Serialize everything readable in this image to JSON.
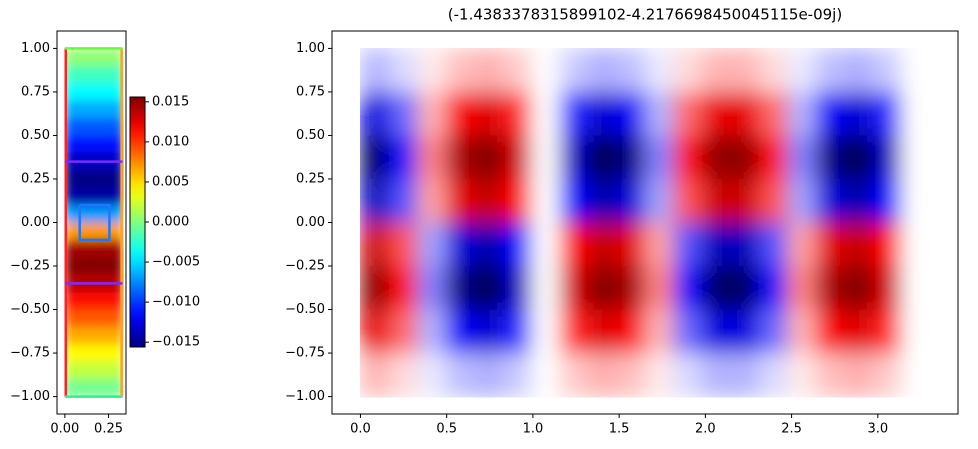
{
  "chart_data": [
    {
      "type": "heatmap",
      "cmap": "jet",
      "x_extent": [
        0,
        0.33
      ],
      "y_extent": [
        -1,
        1
      ],
      "values": [
        [
          0.0005
        ],
        [
          -0.002
        ],
        [
          -0.004
        ],
        [
          -0.0065
        ],
        [
          -0.009
        ],
        [
          -0.0115
        ],
        [
          -0.0138
        ],
        [
          -0.0155
        ],
        [
          -0.0145
        ],
        [
          -0.007
        ],
        [
          0.007
        ],
        [
          0.0145
        ],
        [
          0.0155
        ],
        [
          0.0138
        ],
        [
          0.0115
        ],
        [
          0.009
        ],
        [
          0.0065
        ],
        [
          0.004
        ],
        [
          0.002
        ],
        [
          -0.0005
        ]
      ],
      "xlim": [
        -0.045,
        0.35
      ],
      "ylim": [
        -1.1,
        1.1
      ],
      "xticks": [
        {
          "value": 0,
          "label": "0.00"
        },
        {
          "value": 0.25,
          "label": "0.25"
        }
      ],
      "yticks": [
        {
          "value": 1,
          "label": "1.00"
        },
        {
          "value": 0.75,
          "label": "0.75"
        },
        {
          "value": 0.5,
          "label": "0.50"
        },
        {
          "value": 0.25,
          "label": "0.25"
        },
        {
          "value": 0,
          "label": "0.00"
        },
        {
          "value": -0.25,
          "label": "−0.25"
        },
        {
          "value": -0.5,
          "label": "−0.50"
        },
        {
          "value": -0.75,
          "label": "−0.75"
        },
        {
          "value": -1,
          "label": "−1.00"
        }
      ],
      "colorbar": {
        "lim": [
          -0.0156,
          0.0156
        ],
        "ticks": [
          {
            "value": 0.015,
            "label": "0.015"
          },
          {
            "value": 0.01,
            "label": "0.010"
          },
          {
            "value": 0.005,
            "label": "0.005"
          },
          {
            "value": 0,
            "label": "0.000"
          },
          {
            "value": -0.005,
            "label": "−0.005"
          },
          {
            "value": -0.01,
            "label": "−0.010"
          },
          {
            "value": -0.015,
            "label": "−0.015"
          }
        ]
      },
      "shapes": [
        {
          "color": "#ff2020",
          "x": [
            0.005,
            0.005
          ],
          "y": [
            -1,
            1
          ]
        },
        {
          "color": "#ffa020",
          "x": [
            0.325,
            0.325
          ],
          "y": [
            -1,
            1
          ]
        },
        {
          "color": "#66ff33",
          "x": [
            0,
            0.33
          ],
          "y": [
            1,
            1
          ]
        },
        {
          "color": "#33ee88",
          "x": [
            0,
            0.33
          ],
          "y": [
            -1,
            -1
          ]
        },
        {
          "color": "#7a2cff",
          "x": [
            0,
            0.33
          ],
          "y": [
            0.35,
            0.35
          ]
        },
        {
          "color": "#7a2cff",
          "x": [
            0,
            0.33
          ],
          "y": [
            -0.35,
            -0.35
          ]
        },
        {
          "color": "#1f77ff",
          "x": [
            0.085,
            0.255,
            0.255,
            0.085,
            0.085
          ],
          "y": [
            0.1,
            0.1,
            -0.1,
            -0.1,
            0.1
          ]
        }
      ]
    },
    {
      "type": "heatmap",
      "cmap": "seismic",
      "title": "(-1.4383378315899102-4.2176698450045115e-09j)",
      "x_extent": [
        0,
        3.3
      ],
      "y_extent": [
        -1,
        1
      ],
      "values": [
        [
          -0.14,
          -0.07,
          0.04,
          0.12,
          0.15,
          0.1,
          0,
          -0.1,
          -0.15,
          -0.12,
          -0.04,
          0.07,
          0.14,
          0.14,
          0.07,
          -0.04,
          -0.12,
          -0.15,
          -0.1,
          0
        ],
        [
          -0.56,
          -0.28,
          0.14,
          0.49,
          0.59,
          0.4,
          0,
          -0.4,
          -0.59,
          -0.49,
          -0.14,
          0.28,
          0.56,
          0.56,
          0.28,
          -0.14,
          -0.49,
          -0.59,
          -0.4,
          0
        ],
        [
          -0.88,
          -0.44,
          0.23,
          0.78,
          0.94,
          0.63,
          0,
          -0.63,
          -0.94,
          -0.78,
          -0.23,
          0.44,
          0.88,
          0.88,
          0.44,
          -0.23,
          -0.78,
          -0.94,
          -0.63,
          0
        ],
        [
          -0.65,
          -0.32,
          0.17,
          0.57,
          0.69,
          0.46,
          0,
          -0.46,
          -0.69,
          -0.57,
          -0.17,
          0.32,
          0.65,
          0.65,
          0.32,
          -0.17,
          -0.57,
          -0.69,
          -0.46,
          0
        ],
        [
          0.65,
          0.32,
          -0.17,
          -0.57,
          -0.69,
          -0.46,
          0,
          0.46,
          0.69,
          0.57,
          0.17,
          -0.32,
          -0.65,
          -0.65,
          -0.32,
          0.17,
          0.57,
          0.69,
          0.46,
          0
        ],
        [
          0.88,
          0.44,
          -0.23,
          -0.78,
          -0.94,
          -0.63,
          0,
          0.63,
          0.94,
          0.78,
          0.23,
          -0.44,
          -0.88,
          -0.88,
          -0.44,
          0.23,
          0.78,
          0.94,
          0.63,
          0
        ],
        [
          0.56,
          0.28,
          -0.14,
          -0.49,
          -0.59,
          -0.4,
          0,
          0.4,
          0.59,
          0.49,
          0.14,
          -0.28,
          -0.56,
          -0.56,
          -0.28,
          0.14,
          0.49,
          0.59,
          0.4,
          0
        ],
        [
          0.14,
          0.07,
          -0.04,
          -0.12,
          -0.15,
          -0.1,
          0,
          0.1,
          0.15,
          0.12,
          0.04,
          -0.07,
          -0.14,
          -0.14,
          -0.07,
          0.04,
          0.12,
          0.15,
          0.1,
          0
        ]
      ],
      "xlim": [
        -0.165,
        3.465
      ],
      "ylim": [
        -1.1,
        1.1
      ],
      "xticks": [
        {
          "value": 0,
          "label": "0.0"
        },
        {
          "value": 0.5,
          "label": "0.5"
        },
        {
          "value": 1,
          "label": "1.0"
        },
        {
          "value": 1.5,
          "label": "1.5"
        },
        {
          "value": 2,
          "label": "2.0"
        },
        {
          "value": 2.5,
          "label": "2.5"
        },
        {
          "value": 3,
          "label": "3.0"
        }
      ],
      "yticks": [
        {
          "value": 1,
          "label": "1.00"
        },
        {
          "value": 0.75,
          "label": "0.75"
        },
        {
          "value": 0.5,
          "label": "0.50"
        },
        {
          "value": 0.25,
          "label": "0.25"
        },
        {
          "value": 0,
          "label": "0.00"
        },
        {
          "value": -0.25,
          "label": "−0.25"
        },
        {
          "value": -0.5,
          "label": "−0.50"
        },
        {
          "value": -0.75,
          "label": "−0.75"
        },
        {
          "value": -1,
          "label": "−1.00"
        }
      ]
    }
  ]
}
